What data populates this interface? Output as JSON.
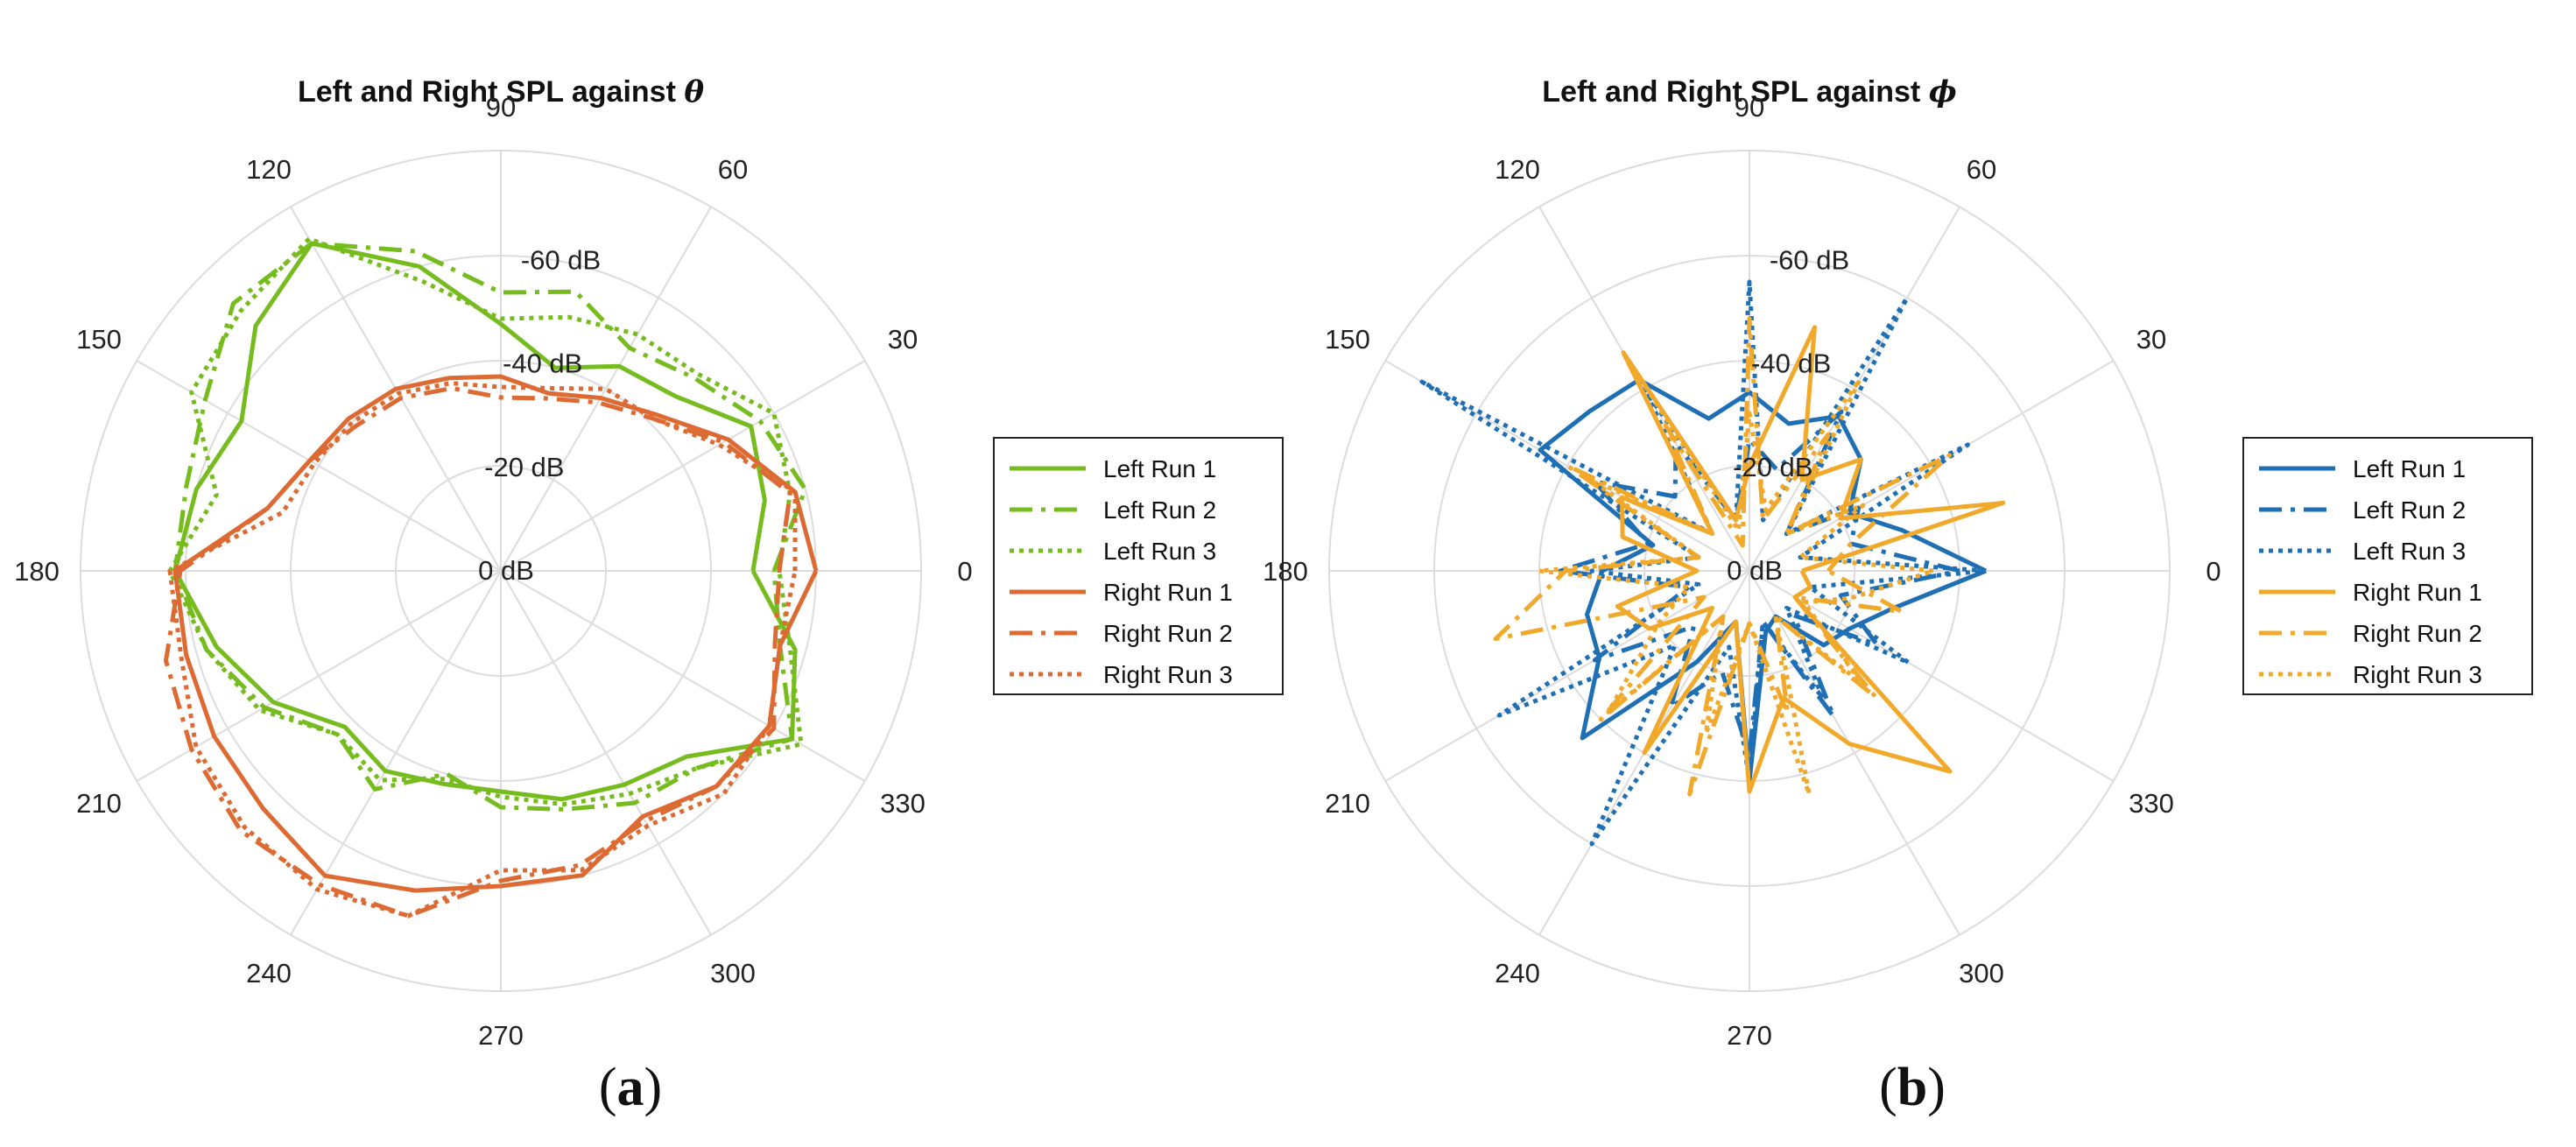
{
  "chart_data": [
    {
      "type": "polar-line",
      "title": "Left and Right SPL against",
      "title_symbol": "θ",
      "caption_letter": "a",
      "angle_ticks": [
        "0",
        "30",
        "60",
        "90",
        "120",
        "150",
        "180",
        "210",
        "240",
        "270",
        "300",
        "330"
      ],
      "radial_ticks": [
        "0 dB",
        "-20 dB",
        "-40 dB",
        "-60 dB"
      ],
      "radial_range": [
        0,
        -80
      ],
      "angles_deg": [
        0,
        15,
        30,
        45,
        60,
        75,
        90,
        105,
        120,
        135,
        150,
        165,
        180,
        195,
        210,
        225,
        240,
        255,
        270,
        285,
        300,
        315,
        330,
        345
      ],
      "series": [
        {
          "name": "Left Run 1",
          "style": "solid",
          "color": "#77BC1F",
          "values": [
            -48,
            -52,
            -55,
            -47,
            -45,
            -40,
            -47,
            -60,
            -72,
            -66,
            -57,
            -60,
            -62,
            -56,
            -50,
            -42,
            -44,
            -42,
            -42,
            -45,
            -47,
            -50,
            -64,
            -58
          ]
        },
        {
          "name": "Left Run 2",
          "style": "dashdot",
          "color": "#77BC1F",
          "values": [
            -52,
            -60,
            -57,
            -52,
            -49,
            -55,
            -53,
            -63,
            -72,
            -72,
            -65,
            -62,
            -62,
            -58,
            -52,
            -44,
            -48,
            -40,
            -45,
            -47,
            -51,
            -53,
            -64,
            -55
          ]
        },
        {
          "name": "Left Run 3",
          "style": "dotted",
          "color": "#77BC1F",
          "values": [
            -53,
            -57,
            -60,
            -53,
            -52,
            -50,
            -48,
            -57,
            -73,
            -70,
            -68,
            -56,
            -63,
            -58,
            -53,
            -44,
            -46,
            -41,
            -43,
            -46,
            -49,
            -53,
            -66,
            -57
          ]
        },
        {
          "name": "Right Run 1",
          "style": "solid",
          "color": "#DD6A33",
          "values": [
            -60,
            -58,
            -50,
            -42,
            -38,
            -35,
            -37,
            -38,
            -40,
            -41,
            -42,
            -46,
            -62,
            -62,
            -63,
            -64,
            -67,
            -63,
            -60,
            -60,
            -54,
            -58,
            -59,
            -55
          ]
        },
        {
          "name": "Right Run 2",
          "style": "dashdot",
          "color": "#DD6A33",
          "values": [
            -53,
            -57,
            -49,
            -41,
            -37,
            -34,
            -33,
            -36,
            -38,
            -39,
            -42,
            -46,
            -61,
            -66,
            -68,
            -70,
            -69,
            -68,
            -59,
            -58,
            -55,
            -58,
            -60,
            -54
          ]
        },
        {
          "name": "Right Run 3",
          "style": "dotted",
          "color": "#DD6A33",
          "values": [
            -56,
            -58,
            -48,
            -41,
            -40,
            -36,
            -35,
            -37,
            -39,
            -40,
            -41,
            -43,
            -63,
            -63,
            -67,
            -69,
            -70,
            -68,
            -57,
            -59,
            -56,
            -60,
            -59,
            -55
          ]
        }
      ]
    },
    {
      "type": "polar-line",
      "title": "Left and Right SPL against",
      "title_symbol": "ϕ",
      "caption_letter": "b",
      "angle_ticks": [
        "0",
        "30",
        "60",
        "90",
        "120",
        "150",
        "180",
        "210",
        "240",
        "270",
        "300",
        "330"
      ],
      "radial_ticks": [
        "0 dB",
        "-20 dB",
        "-40 dB",
        "-60 dB"
      ],
      "radial_range": [
        0,
        -80
      ],
      "angles_deg": [
        0,
        15,
        30,
        45,
        60,
        75,
        90,
        105,
        120,
        135,
        150,
        165,
        180,
        195,
        210,
        225,
        240,
        255,
        270,
        285,
        300,
        315,
        330,
        345
      ],
      "series": [
        {
          "name": "Left Run 1",
          "style": "solid",
          "color": "#1F6FB5",
          "values": [
            -45,
            -30,
            -22,
            -30,
            -34,
            -29,
            -34,
            -30,
            -42,
            -43,
            -46,
            -19,
            -28,
            -32,
            -33,
            -45,
            -20,
            -10,
            -40,
            -12,
            -10,
            -20,
            -22,
            -28
          ]
        },
        {
          "name": "Left Run 2",
          "style": "dashdot",
          "color": "#1F6FB5",
          "values": [
            -40,
            -20,
            -24,
            -10,
            -35,
            -20,
            -25,
            -10,
            -28,
            -20,
            -34,
            -20,
            -36,
            -12,
            -34,
            -15,
            -30,
            -20,
            -35,
            -10,
            -32,
            -12,
            -28,
            -18
          ]
        },
        {
          "name": "Left Run 3",
          "style": "dotted",
          "color": "#1F6FB5",
          "values": [
            -45,
            -10,
            -48,
            -10,
            -60,
            -10,
            -55,
            -10,
            -40,
            -10,
            -72,
            -10,
            -30,
            -10,
            -55,
            -20,
            -60,
            -15,
            -40,
            -10,
            -28,
            -10,
            -35,
            -12
          ]
        },
        {
          "name": "Right Run 1",
          "style": "solid",
          "color": "#F0A92B",
          "values": [
            -10,
            -50,
            -20,
            -30,
            -20,
            -48,
            -20,
            -10,
            -48,
            -10,
            -28,
            -25,
            -10,
            -26,
            -22,
            -10,
            -40,
            -10,
            -42,
            -25,
            -38,
            -54,
            -10,
            -12
          ]
        },
        {
          "name": "Right Run 2",
          "style": "dashdot",
          "color": "#F0A92B",
          "values": [
            -15,
            -20,
            -44,
            -10,
            -30,
            -10,
            -48,
            -5,
            -32,
            -10,
            -40,
            -10,
            -35,
            -50,
            -10,
            -40,
            -10,
            -44,
            -10,
            -28,
            -10,
            -34,
            -10,
            -30
          ]
        },
        {
          "name": "Right Run 3",
          "style": "dotted",
          "color": "#F0A92B",
          "values": [
            -35,
            -10,
            -25,
            -10,
            -42,
            -12,
            -30,
            -8,
            -48,
            -10,
            -35,
            -10,
            -40,
            -12,
            -20,
            -38,
            -10,
            -32,
            -10,
            -44,
            -10,
            -30,
            -12,
            -20
          ]
        }
      ]
    }
  ]
}
